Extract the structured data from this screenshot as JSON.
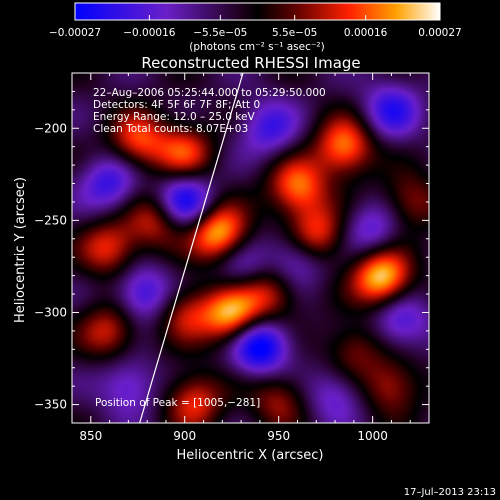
{
  "chart_data": {
    "type": "heatmap",
    "title": "Reconstructed RHESSI Image",
    "xlabel": "Heliocentric X (arcsec)",
    "ylabel": "Heliocentric Y (arcsec)",
    "xlim": [
      840,
      1030
    ],
    "ylim": [
      -360,
      -170
    ],
    "x_ticks": [
      850,
      900,
      950,
      1000
    ],
    "x_tick_labels": [
      "850",
      "900",
      "950",
      "1000"
    ],
    "y_ticks": [
      -200,
      -250,
      -300,
      -350
    ],
    "y_tick_labels": [
      "−200",
      "−250",
      "−300",
      "−350"
    ],
    "colorbar": {
      "range": [
        -0.00027,
        0.00027
      ],
      "ticks": [
        -0.00027,
        -0.00016,
        -5.5e-05,
        5.5e-05,
        0.00016,
        0.00027
      ],
      "tick_labels": [
        "−0.00027",
        "−0.00016",
        "−5.5e−05",
        "5.5e−05",
        "0.00016",
        "0.00027"
      ],
      "label": "(photons cm⁻² s⁻¹ asec⁻²)"
    },
    "annotations": [
      "22–Aug–2006 05:25:44.000 to 05:29:50.000",
      "Detectors: 4F 5F 6F 7F 8F; Att 0",
      "Energy Range: 12.0 – 25.0 keV",
      "Clean    Total counts: 8.07E+03"
    ],
    "peak_label": "Position of Peak = [1005,−281]",
    "peak": [
      1005,
      -281
    ],
    "limb_line": [
      [
        876,
        -360
      ],
      [
        931,
        -170
      ]
    ],
    "sources": [
      {
        "x": 1005,
        "y": -281,
        "v": 1.0
      },
      {
        "x": 918,
        "y": -257,
        "v": 0.95
      },
      {
        "x": 925,
        "y": -302,
        "v": 0.9
      },
      {
        "x": 875,
        "y": -207,
        "v": 0.65
      },
      {
        "x": 900,
        "y": -213,
        "v": 0.6
      },
      {
        "x": 960,
        "y": -232,
        "v": 0.75
      },
      {
        "x": 970,
        "y": -258,
        "v": 0.7
      },
      {
        "x": 985,
        "y": -210,
        "v": 0.8
      },
      {
        "x": 885,
        "y": -250,
        "v": 0.55
      },
      {
        "x": 860,
        "y": -265,
        "v": 0.6
      },
      {
        "x": 860,
        "y": -310,
        "v": 0.55
      },
      {
        "x": 900,
        "y": -300,
        "v": 0.5
      },
      {
        "x": 905,
        "y": -348,
        "v": 0.6
      },
      {
        "x": 950,
        "y": -347,
        "v": 0.45
      },
      {
        "x": 1010,
        "y": -340,
        "v": 0.5
      },
      {
        "x": 990,
        "y": -320,
        "v": 0.4
      },
      {
        "x": 945,
        "y": -290,
        "v": 0.55
      },
      {
        "x": 1020,
        "y": -240,
        "v": 0.45
      },
      {
        "x": 860,
        "y": -230,
        "v": -0.55
      },
      {
        "x": 878,
        "y": -290,
        "v": -0.6
      },
      {
        "x": 940,
        "y": -318,
        "v": -0.9
      },
      {
        "x": 900,
        "y": -240,
        "v": -0.75
      },
      {
        "x": 945,
        "y": -200,
        "v": -0.5
      },
      {
        "x": 1010,
        "y": -190,
        "v": -0.55
      },
      {
        "x": 1000,
        "y": -255,
        "v": -0.45
      },
      {
        "x": 1015,
        "y": -305,
        "v": -0.5
      },
      {
        "x": 980,
        "y": -345,
        "v": -0.4
      },
      {
        "x": 870,
        "y": -340,
        "v": -0.45
      },
      {
        "x": 930,
        "y": -275,
        "v": -0.35
      },
      {
        "x": 960,
        "y": -270,
        "v": -0.5
      }
    ]
  },
  "footer": {
    "timestamp": "17–Jul–2013 23:13"
  }
}
